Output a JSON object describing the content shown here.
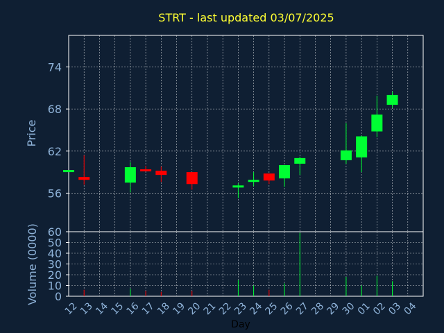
{
  "chart_data": {
    "type": "candlestick",
    "title": "STRT - last updated 03/07/2025",
    "xlabel": "Day",
    "colors": {
      "background": "#0f1f33",
      "up": "#00ff33",
      "down": "#ff0000",
      "grid": "#ffffff",
      "text": "#8fb3d9",
      "title": "#ffff33"
    },
    "categories": [
      "12",
      "13",
      "14",
      "15",
      "16",
      "17",
      "18",
      "19",
      "20",
      "21",
      "22",
      "23",
      "24",
      "25",
      "26",
      "27",
      "28",
      "29",
      "30",
      "01",
      "02",
      "03",
      "04"
    ],
    "price_panel": {
      "ylabel": "Price",
      "ylim": [
        50.5,
        78.5
      ],
      "yticks": [
        "56",
        "62",
        "68",
        "74"
      ],
      "grid": true
    },
    "volume_panel": {
      "ylabel": "Volume (0000)",
      "ylim": [
        0,
        60
      ],
      "yticks": [
        "0",
        "10",
        "20",
        "30",
        "40",
        "50",
        "60"
      ],
      "grid": true
    },
    "candles": [
      {
        "x": 12.0,
        "open": 59.0,
        "close": 59.3,
        "high": 59.3,
        "low": 59.0,
        "volume": 0
      },
      {
        "x": 13.0,
        "open": 58.3,
        "close": 57.9,
        "high": 61.4,
        "low": 57.2,
        "volume": 6
      },
      {
        "x": 16.0,
        "open": 57.5,
        "close": 59.7,
        "high": 60.4,
        "low": 56.1,
        "volume": 7
      },
      {
        "x": 17.0,
        "open": 59.4,
        "close": 59.2,
        "high": 59.9,
        "low": 59.2,
        "volume": 5
      },
      {
        "x": 18.0,
        "open": 59.2,
        "close": 58.6,
        "high": 59.8,
        "low": 57.6,
        "volume": 4
      },
      {
        "x": 20.0,
        "open": 59.0,
        "close": 57.3,
        "high": 59.0,
        "low": 56.5,
        "volume": 5
      },
      {
        "x": 23.0,
        "open": 56.8,
        "close": 57.1,
        "high": 57.4,
        "low": 55.3,
        "volume": 15
      },
      {
        "x": 24.0,
        "open": 57.8,
        "close": 57.9,
        "high": 59.0,
        "low": 57.0,
        "volume": 10
      },
      {
        "x": 25.0,
        "open": 58.8,
        "close": 57.8,
        "high": 58.8,
        "low": 57.3,
        "volume": 6
      },
      {
        "x": 26.0,
        "open": 58.1,
        "close": 60.0,
        "high": 60.0,
        "low": 56.9,
        "volume": 12
      },
      {
        "x": 27.0,
        "open": 60.2,
        "close": 61.0,
        "high": 61.2,
        "low": 58.6,
        "volume": 59
      },
      {
        "x": 30.0,
        "open": 60.7,
        "close": 62.1,
        "high": 66.0,
        "low": 60.2,
        "volume": 18
      },
      {
        "x": 31.0,
        "open": 61.1,
        "close": 64.1,
        "high": 64.2,
        "low": 59.0,
        "volume": 10
      },
      {
        "x": 32.0,
        "open": 64.8,
        "close": 67.2,
        "high": 69.9,
        "low": 64.0,
        "volume": 19
      },
      {
        "x": 33.0,
        "open": 68.6,
        "close": 70.0,
        "high": 70.5,
        "low": 68.2,
        "volume": 14
      }
    ]
  }
}
